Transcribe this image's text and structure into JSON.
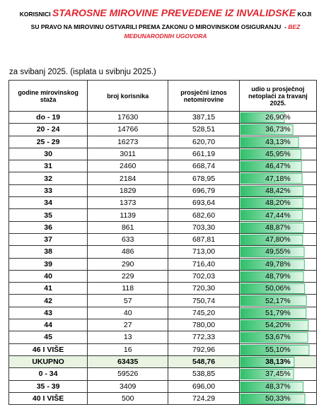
{
  "header": {
    "line1_pre": "KORISNICI",
    "line1_red": "STAROSNE MIROVINE PREVEDENE IZ INVALIDSKE",
    "line1_post": "KOJI",
    "line2": "SU PRAVO NA MIROVINU OSTVARILI PREMA ZAKONU O MIROVINSKOM OSIGURANJU  -",
    "line2_red": "BEZ",
    "line3_red": "MEĐUNARODNIH UGOVORA",
    "period": "za svibanj 2025. (isplata u svibnju 2025.)"
  },
  "table": {
    "columns": [
      "godine mirovinskog staža",
      "broj korisnika",
      "prosječni iznos netomirovine",
      "udio u prosječnoj netoplaći za travanj 2025."
    ],
    "rows": [
      [
        "do - 19",
        "17630",
        "387,15"
      ],
      [
        "20 - 24",
        "14766",
        "528,51"
      ],
      [
        "25 - 29",
        "16273",
        "620,70"
      ],
      [
        "30",
        "3011",
        "661,19"
      ],
      [
        "31",
        "2460",
        "668,74"
      ],
      [
        "32",
        "2184",
        "678,95"
      ],
      [
        "33",
        "1829",
        "696,79"
      ],
      [
        "34",
        "1373",
        "693,64"
      ],
      [
        "35",
        "1139",
        "682,60"
      ],
      [
        "36",
        "861",
        "703,30"
      ],
      [
        "37",
        "633",
        "687,81"
      ],
      [
        "38",
        "486",
        "713,00"
      ],
      [
        "39",
        "290",
        "716,40"
      ],
      [
        "40",
        "229",
        "702,03"
      ],
      [
        "41",
        "118",
        "720,30"
      ],
      [
        "42",
        "57",
        "750,74"
      ],
      [
        "43",
        "40",
        "745,20"
      ],
      [
        "44",
        "27",
        "780,00"
      ],
      [
        "45",
        "13",
        "772,33"
      ],
      [
        "46 I VIŠE",
        "16",
        "792,96"
      ],
      [
        "UKUPNO",
        "63435",
        "548,76"
      ],
      [
        "0 - 34",
        "59526",
        "538,85"
      ],
      [
        "35 - 39",
        "3409",
        "696,00"
      ],
      [
        "40 I VIŠE",
        "500",
        "724,29"
      ]
    ],
    "shares": [
      26.9,
      36.73,
      43.13,
      45.95,
      46.47,
      47.18,
      48.42,
      48.2,
      47.44,
      48.87,
      47.8,
      49.55,
      49.78,
      48.79,
      50.06,
      52.17,
      51.79,
      54.2,
      53.67,
      55.1,
      38.13,
      37.45,
      48.37,
      50.33
    ],
    "share_labels": [
      "26,90%",
      "36,73%",
      "43,13%",
      "45,95%",
      "46,47%",
      "47,18%",
      "48,42%",
      "48,20%",
      "47,44%",
      "48,87%",
      "47,80%",
      "49,55%",
      "49,78%",
      "48,79%",
      "50,06%",
      "52,17%",
      "51,79%",
      "54,20%",
      "53,67%",
      "55,10%",
      "38,13%",
      "37,45%",
      "48,37%",
      "50,33%"
    ],
    "total_row": 20
  }
}
